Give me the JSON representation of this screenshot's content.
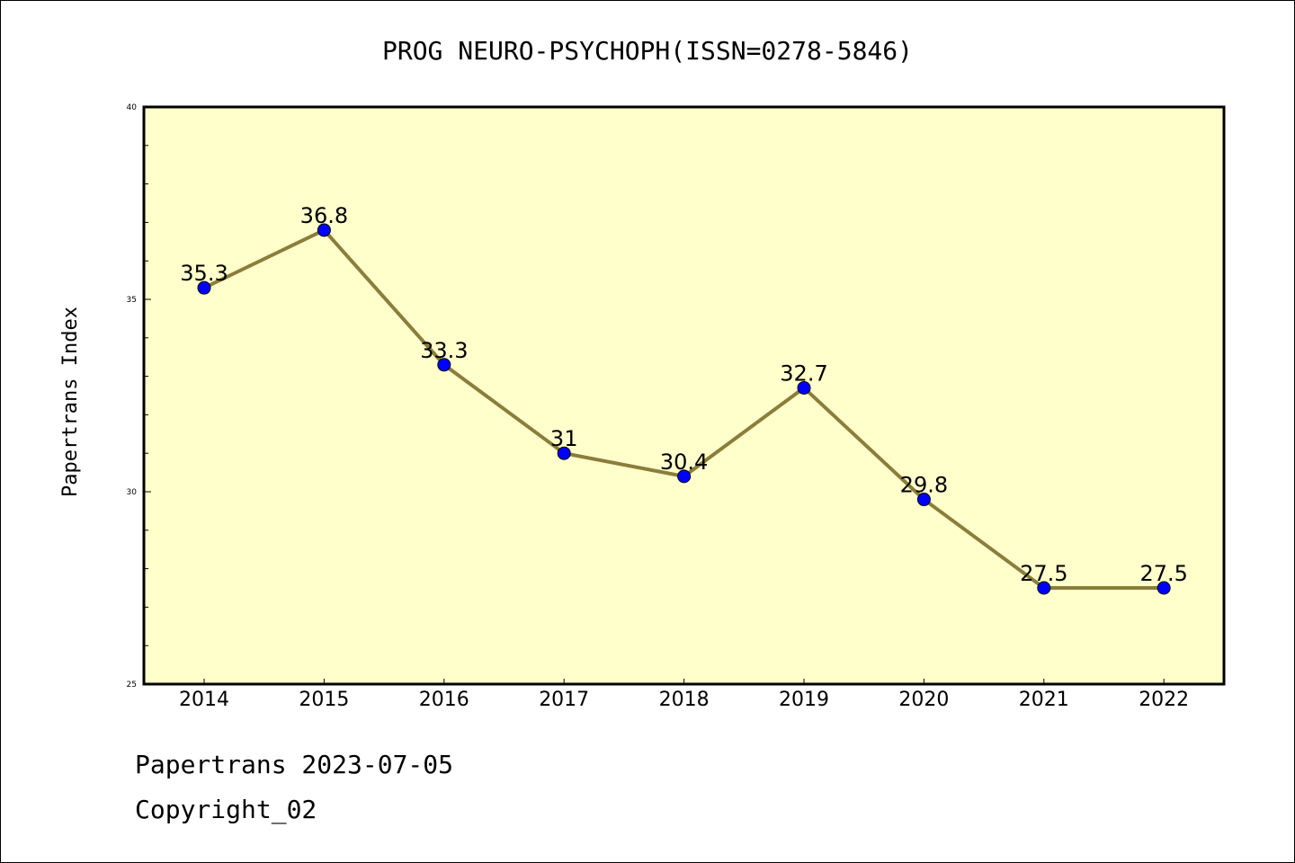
{
  "chart_data": {
    "type": "line",
    "title": "PROG NEURO-PSYCHOPH(ISSN=0278-5846)",
    "xlabel": "",
    "ylabel": "Papertrans Index",
    "categories": [
      "2014",
      "2015",
      "2016",
      "2017",
      "2018",
      "2019",
      "2020",
      "2021",
      "2022"
    ],
    "values": [
      35.3,
      36.8,
      33.3,
      31,
      30.4,
      32.7,
      29.8,
      27.5,
      27.5
    ],
    "data_labels": [
      "35.3",
      "36.8",
      "33.3",
      "31",
      "30.4",
      "32.7",
      "29.8",
      "27.5",
      "27.5"
    ],
    "ylim": [
      25,
      40
    ],
    "yticks": [
      "25",
      "30",
      "35",
      "40"
    ],
    "grid": false,
    "colors": {
      "plot_background": "#ffffcc",
      "line": "#8b7d3a",
      "marker": "#0000ff"
    }
  },
  "footer": {
    "line1": "Papertrans 2023-07-05",
    "line2": "Copyright_02"
  }
}
